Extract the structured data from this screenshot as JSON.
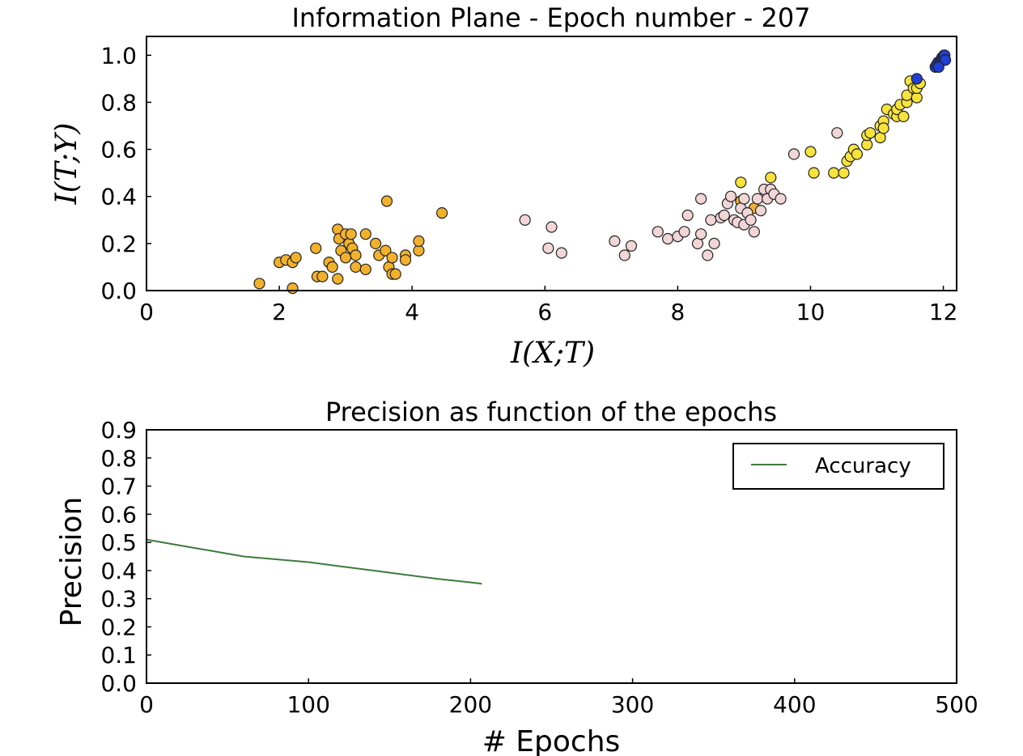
{
  "chart_data": [
    {
      "type": "scatter",
      "title": "Information Plane - Epoch number - 207",
      "xlabel": "I(X;T)",
      "ylabel": "I(T;Y)",
      "xlim": [
        0,
        12.2
      ],
      "ylim": [
        0,
        1.08
      ],
      "xticks": [
        "0",
        "2",
        "4",
        "6",
        "8",
        "10",
        "12"
      ],
      "yticks": [
        "0.0",
        "0.2",
        "0.4",
        "0.6",
        "0.8",
        "1.0"
      ],
      "grid": false,
      "colors": {
        "orange": "#f2b12d",
        "pink": "#f2d5d6",
        "yellow": "#f7e33b",
        "blue": "#1f3fd6"
      },
      "series": [
        {
          "color": "orange",
          "points": [
            [
              1.7,
              0.03
            ],
            [
              2.0,
              0.12
            ],
            [
              2.1,
              0.13
            ],
            [
              2.2,
              0.01
            ],
            [
              2.2,
              0.12
            ],
            [
              2.25,
              0.14
            ],
            [
              2.55,
              0.18
            ],
            [
              2.57,
              0.06
            ],
            [
              2.65,
              0.06
            ],
            [
              2.75,
              0.12
            ],
            [
              2.8,
              0.1
            ],
            [
              2.88,
              0.26
            ],
            [
              2.88,
              0.05
            ],
            [
              2.9,
              0.22
            ],
            [
              2.93,
              0.17
            ],
            [
              3.0,
              0.24
            ],
            [
              3.0,
              0.14
            ],
            [
              3.05,
              0.2
            ],
            [
              3.08,
              0.24
            ],
            [
              3.1,
              0.18
            ],
            [
              3.15,
              0.15
            ],
            [
              3.15,
              0.1
            ],
            [
              3.3,
              0.24
            ],
            [
              3.3,
              0.09
            ],
            [
              3.45,
              0.2
            ],
            [
              3.5,
              0.15
            ],
            [
              3.6,
              0.17
            ],
            [
              3.62,
              0.38
            ],
            [
              3.65,
              0.1
            ],
            [
              3.7,
              0.07
            ],
            [
              3.7,
              0.14
            ],
            [
              3.75,
              0.07
            ],
            [
              3.9,
              0.15
            ],
            [
              3.9,
              0.13
            ],
            [
              4.1,
              0.17
            ],
            [
              4.1,
              0.21
            ],
            [
              4.45,
              0.33
            ],
            [
              8.95,
              0.38
            ],
            [
              9.15,
              0.35
            ]
          ]
        },
        {
          "color": "pink",
          "points": [
            [
              5.7,
              0.3
            ],
            [
              6.05,
              0.18
            ],
            [
              6.1,
              0.27
            ],
            [
              6.25,
              0.16
            ],
            [
              7.05,
              0.21
            ],
            [
              7.2,
              0.15
            ],
            [
              7.3,
              0.19
            ],
            [
              7.7,
              0.25
            ],
            [
              7.85,
              0.22
            ],
            [
              8.0,
              0.23
            ],
            [
              8.1,
              0.25
            ],
            [
              8.15,
              0.32
            ],
            [
              8.3,
              0.2
            ],
            [
              8.35,
              0.24
            ],
            [
              8.35,
              0.39
            ],
            [
              8.45,
              0.15
            ],
            [
              8.5,
              0.3
            ],
            [
              8.55,
              0.2
            ],
            [
              8.65,
              0.31
            ],
            [
              8.7,
              0.32
            ],
            [
              8.75,
              0.37
            ],
            [
              8.8,
              0.4
            ],
            [
              8.85,
              0.3
            ],
            [
              8.9,
              0.29
            ],
            [
              8.95,
              0.35
            ],
            [
              9.0,
              0.39
            ],
            [
              9.0,
              0.28
            ],
            [
              9.05,
              0.33
            ],
            [
              9.1,
              0.3
            ],
            [
              9.15,
              0.25
            ],
            [
              9.2,
              0.39
            ],
            [
              9.25,
              0.34
            ],
            [
              9.3,
              0.43
            ],
            [
              9.35,
              0.39
            ],
            [
              9.4,
              0.43
            ],
            [
              9.45,
              0.41
            ],
            [
              9.55,
              0.39
            ],
            [
              9.75,
              0.58
            ],
            [
              10.4,
              0.67
            ]
          ]
        },
        {
          "color": "yellow",
          "points": [
            [
              8.95,
              0.46
            ],
            [
              9.4,
              0.48
            ],
            [
              10.0,
              0.59
            ],
            [
              10.05,
              0.5
            ],
            [
              10.35,
              0.5
            ],
            [
              10.5,
              0.5
            ],
            [
              10.55,
              0.55
            ],
            [
              10.6,
              0.57
            ],
            [
              10.65,
              0.6
            ],
            [
              10.7,
              0.58
            ],
            [
              10.85,
              0.62
            ],
            [
              10.85,
              0.66
            ],
            [
              10.9,
              0.67
            ],
            [
              11.05,
              0.65
            ],
            [
              11.05,
              0.7
            ],
            [
              11.1,
              0.72
            ],
            [
              11.1,
              0.69
            ],
            [
              11.15,
              0.77
            ],
            [
              11.25,
              0.75
            ],
            [
              11.3,
              0.74
            ],
            [
              11.3,
              0.77
            ],
            [
              11.35,
              0.79
            ],
            [
              11.4,
              0.74
            ],
            [
              11.45,
              0.8
            ],
            [
              11.45,
              0.83
            ],
            [
              11.5,
              0.89
            ],
            [
              11.55,
              0.86
            ],
            [
              11.6,
              0.82
            ],
            [
              11.6,
              0.86
            ],
            [
              11.65,
              0.88
            ]
          ]
        },
        {
          "color": "blue",
          "points": [
            [
              11.6,
              0.9
            ],
            [
              11.88,
              0.95
            ],
            [
              11.9,
              0.96
            ],
            [
              11.92,
              0.97
            ],
            [
              11.95,
              0.97
            ],
            [
              11.97,
              0.98
            ],
            [
              11.98,
              0.99
            ],
            [
              12.0,
              0.99
            ],
            [
              12.01,
              1.0
            ],
            [
              12.02,
              1.0
            ],
            [
              12.03,
              0.98
            ],
            [
              11.93,
              0.95
            ]
          ]
        }
      ]
    },
    {
      "type": "line",
      "title": "Precision as function of the epochs",
      "xlabel": "# Epochs",
      "ylabel": "Precision",
      "xlim": [
        0,
        500
      ],
      "ylim": [
        0,
        0.9
      ],
      "xticks": [
        "0",
        "100",
        "200",
        "300",
        "400",
        "500"
      ],
      "yticks": [
        "0.0",
        "0.1",
        "0.2",
        "0.3",
        "0.4",
        "0.5",
        "0.6",
        "0.7",
        "0.8",
        "0.9"
      ],
      "grid": false,
      "legend_position": "top-right",
      "series": [
        {
          "name": "Accuracy",
          "color": "#3d7a3d",
          "x": [
            0,
            10,
            20,
            30,
            40,
            50,
            60,
            80,
            100,
            120,
            140,
            160,
            180,
            200,
            207
          ],
          "y": [
            0.51,
            0.5,
            0.49,
            0.48,
            0.47,
            0.46,
            0.45,
            0.44,
            0.43,
            0.415,
            0.4,
            0.385,
            0.37,
            0.358,
            0.353
          ]
        }
      ]
    }
  ]
}
